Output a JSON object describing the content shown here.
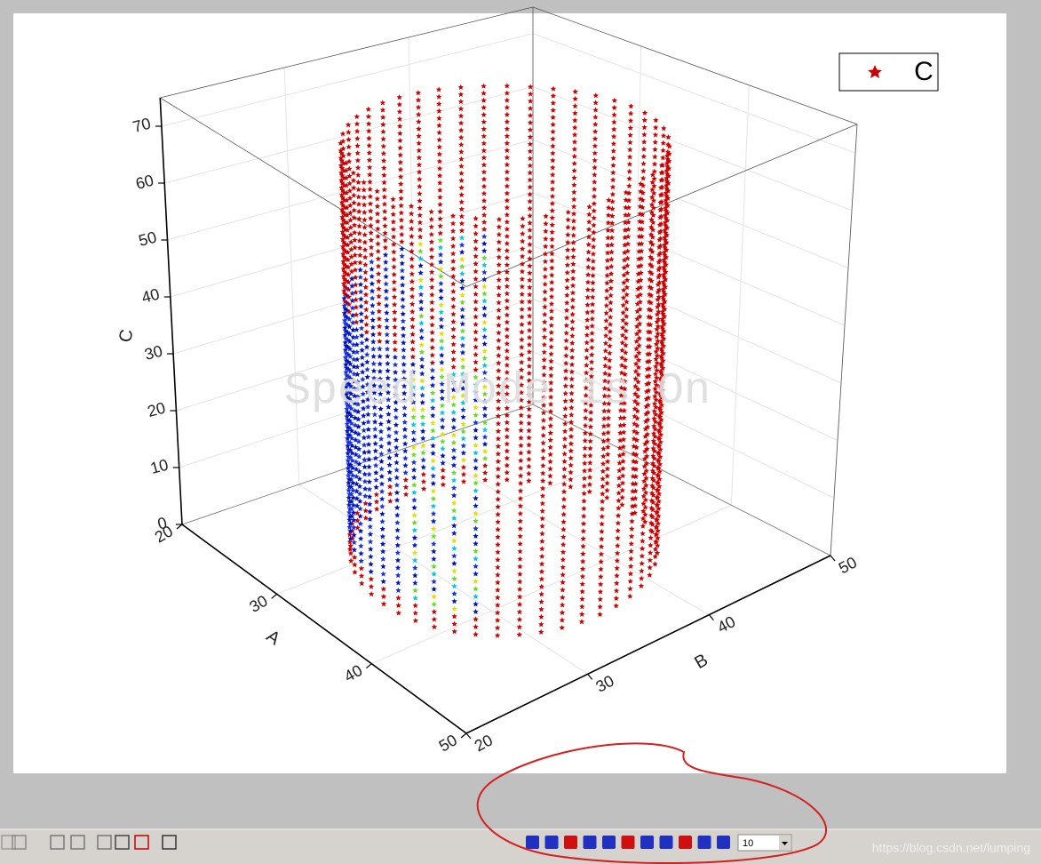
{
  "plot": {
    "x_axis": {
      "label": "A",
      "lim": [
        20,
        50
      ],
      "ticks": [
        20,
        30,
        40,
        50
      ]
    },
    "y_axis": {
      "label": "B",
      "lim": [
        20,
        50
      ],
      "ticks": [
        20,
        30,
        40,
        50
      ]
    },
    "z_axis": {
      "label": "C",
      "lim": [
        0,
        75
      ],
      "ticks": [
        0,
        10,
        20,
        30,
        40,
        50,
        60,
        70
      ]
    },
    "legend": "C",
    "watermark": "Speed Mode is On"
  },
  "toolbar": {
    "zoom": "10"
  },
  "credit": "https://blog.csdn.net/lumping"
}
